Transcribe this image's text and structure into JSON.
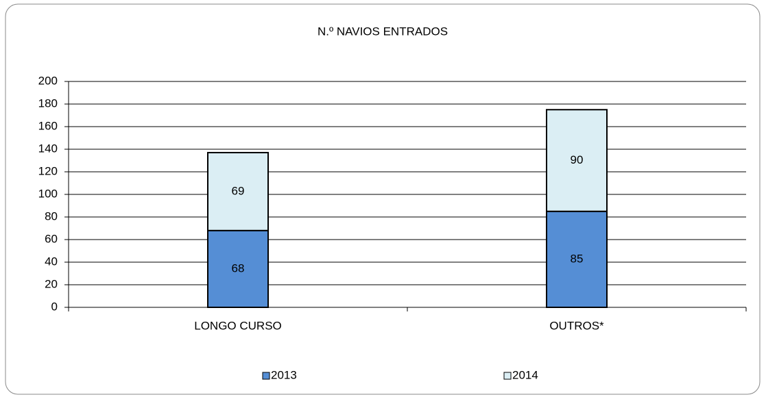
{
  "chart_data": {
    "type": "stacked_bar",
    "title": "N.º NAVIOS ENTRADOS",
    "categories": [
      "LONGO CURSO",
      "OUTROS*"
    ],
    "series": [
      {
        "name": "2013",
        "color": "#558ed5",
        "values": [
          68,
          85
        ]
      },
      {
        "name": "2014",
        "color": "#dbeef4",
        "values": [
          69,
          90
        ]
      }
    ],
    "ylim": [
      0,
      200
    ],
    "yticks": [
      0,
      20,
      40,
      60,
      80,
      100,
      120,
      140,
      160,
      180,
      200
    ],
    "grid": true,
    "legend": "bottom"
  }
}
